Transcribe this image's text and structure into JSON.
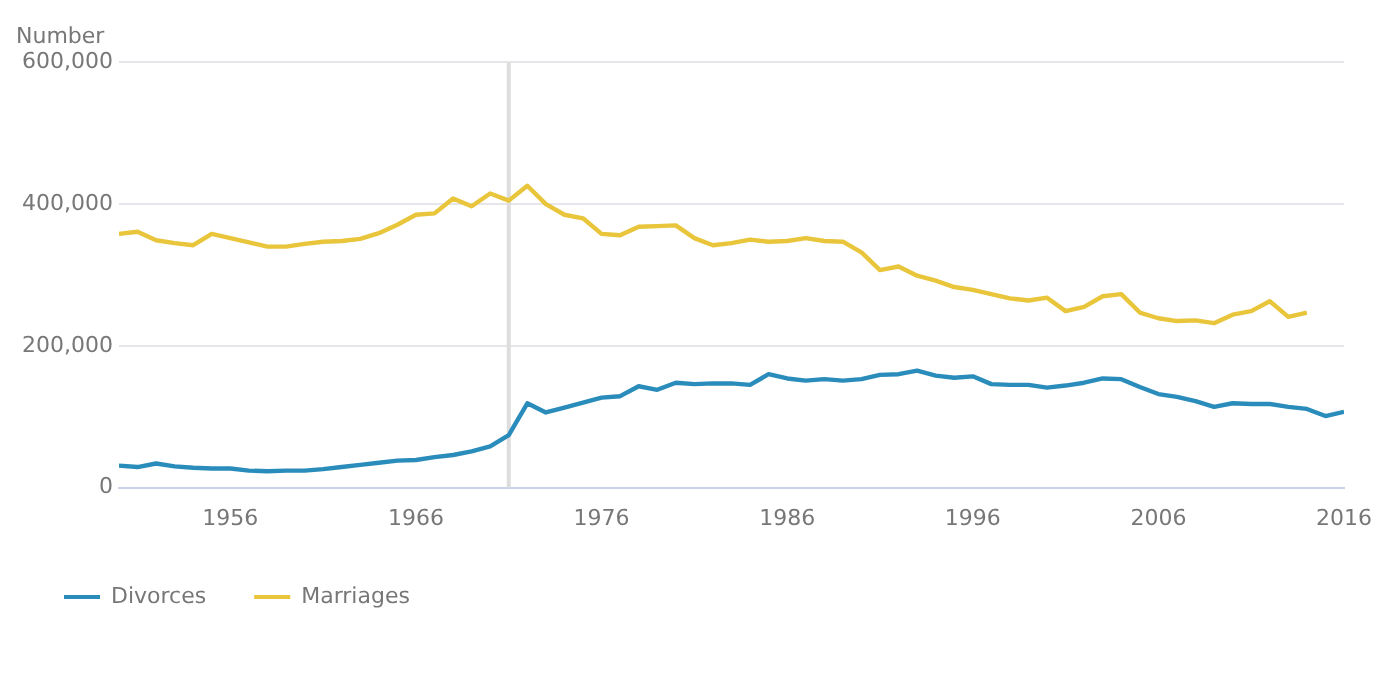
{
  "chart_data": {
    "type": "line",
    "ylabel": "Number",
    "x": [
      1950,
      1951,
      1952,
      1953,
      1954,
      1955,
      1956,
      1957,
      1958,
      1959,
      1960,
      1961,
      1962,
      1963,
      1964,
      1965,
      1966,
      1967,
      1968,
      1969,
      1970,
      1971,
      1972,
      1973,
      1974,
      1975,
      1976,
      1977,
      1978,
      1979,
      1980,
      1981,
      1982,
      1983,
      1984,
      1985,
      1986,
      1987,
      1988,
      1989,
      1990,
      1991,
      1992,
      1993,
      1994,
      1995,
      1996,
      1997,
      1998,
      1999,
      2000,
      2001,
      2002,
      2003,
      2004,
      2005,
      2006,
      2007,
      2008,
      2009,
      2010,
      2011,
      2012,
      2013,
      2014,
      2015,
      2016
    ],
    "series": [
      {
        "name": "Divorces",
        "color": "#2a8cba",
        "values": [
          31000,
          29000,
          34000,
          30000,
          28000,
          27000,
          27000,
          24000,
          23000,
          24000,
          24000,
          26000,
          29000,
          32000,
          35000,
          38000,
          39000,
          43000,
          46000,
          51000,
          58000,
          74000,
          119000,
          106000,
          113000,
          120000,
          127000,
          129000,
          143000,
          138000,
          148000,
          146000,
          147000,
          147000,
          145000,
          160000,
          154000,
          151000,
          153000,
          151000,
          153000,
          159000,
          160000,
          165000,
          158000,
          155000,
          157000,
          146000,
          145000,
          145000,
          141000,
          144000,
          148000,
          154000,
          153000,
          142000,
          132000,
          128000,
          122000,
          114000,
          119000,
          118000,
          118000,
          114000,
          111000,
          101000,
          107000
        ]
      },
      {
        "name": "Marriages",
        "color": "#e8c53a",
        "values": [
          358000,
          361000,
          349000,
          345000,
          342000,
          358000,
          352000,
          346000,
          340000,
          340000,
          344000,
          347000,
          348000,
          351000,
          359000,
          371000,
          385000,
          387000,
          408000,
          397000,
          415000,
          405000,
          426000,
          400000,
          385000,
          380000,
          358000,
          356000,
          368000,
          369000,
          370000,
          352000,
          342000,
          345000,
          350000,
          347000,
          348000,
          352000,
          348000,
          347000,
          332000,
          307000,
          312000,
          299000,
          292000,
          283000,
          279000,
          273000,
          267000,
          264000,
          268000,
          249000,
          255000,
          270000,
          273000,
          247000,
          239000,
          235000,
          236000,
          232000,
          244000,
          249000,
          263000,
          241000,
          247000,
          null,
          null
        ]
      }
    ],
    "xlim": [
      1950,
      2016
    ],
    "xticks": [
      1956,
      1966,
      1976,
      1986,
      1996,
      2006,
      2016
    ],
    "ylim": [
      0,
      600000
    ],
    "yticks": [
      0,
      {
        "value": 200000,
        "label": "200,000"
      },
      {
        "value": 400000,
        "label": "400,000"
      },
      {
        "value": 600000,
        "label": "600,000"
      }
    ],
    "ref_lines": [
      {
        "axis": "x",
        "value": 1971,
        "color": "#dddddd"
      }
    ],
    "grid": "y",
    "legend": "bottom left",
    "marker": "none",
    "line_style": "solid"
  }
}
